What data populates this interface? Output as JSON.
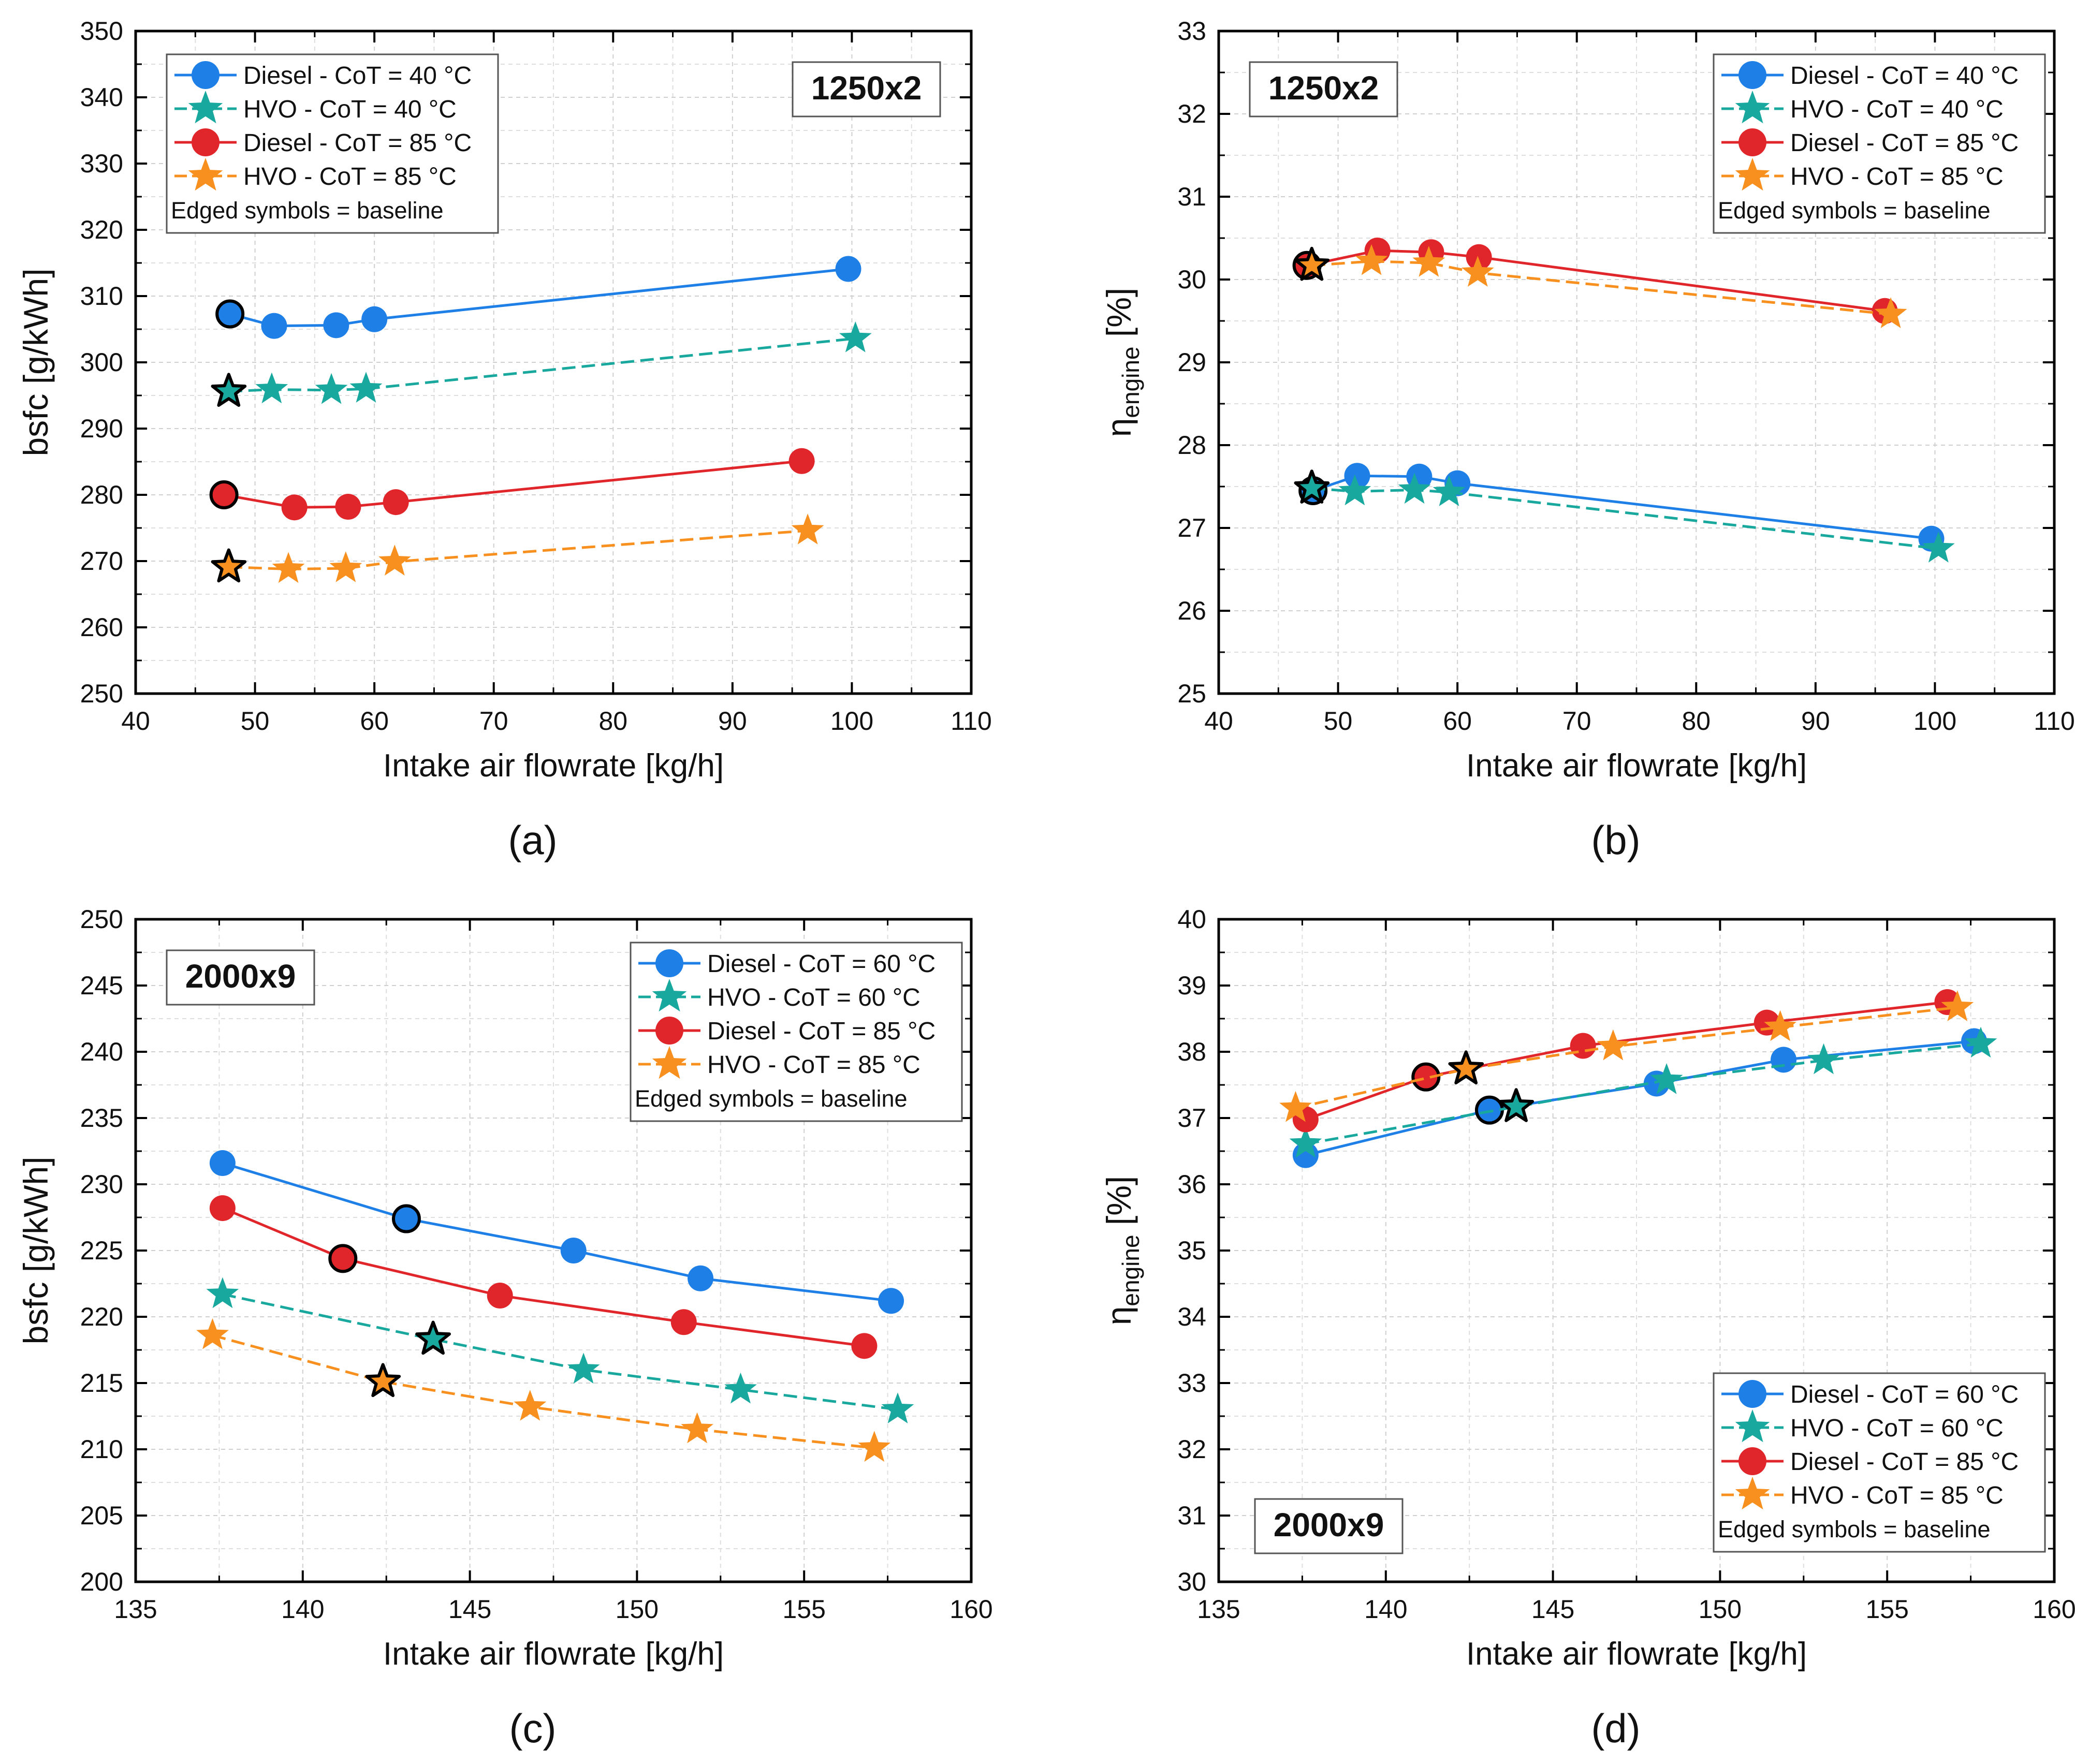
{
  "figure": {
    "panels": [
      "a",
      "b",
      "c",
      "d"
    ]
  },
  "colors": {
    "diesel_low": "#1E7FE6",
    "hvo_low": "#18A89E",
    "diesel_85": "#E0262B",
    "hvo_85": "#F7901E",
    "axis": "#000000",
    "grid": "#d0d0d0"
  },
  "chart_data": [
    {
      "id": "a",
      "type": "line",
      "panel_label": "(a)",
      "badge": "1250x2",
      "badge_position": "top-right",
      "legend_position": "top-left",
      "xlabel": "Intake air flowrate [kg/h]",
      "ylabel": "bsfc [g/kWh]",
      "ylabel_sub": "",
      "ylabel_suffix": "",
      "xlim": [
        40,
        110
      ],
      "ylim": [
        250,
        350
      ],
      "xticks": [
        40,
        50,
        60,
        70,
        80,
        90,
        100,
        110
      ],
      "yticks": [
        250,
        260,
        270,
        280,
        290,
        300,
        310,
        320,
        330,
        340,
        350
      ],
      "legend_note": "Edged symbols = baseline",
      "series": [
        {
          "name": "Diesel - CoT = 40 °C",
          "marker": "circle",
          "color": "#1E7FE6",
          "dashed": false,
          "baseline_index": 0,
          "x": [
            47.9,
            51.6,
            56.8,
            60.0,
            99.7
          ],
          "y": [
            307.3,
            305.5,
            305.6,
            306.5,
            314.1
          ]
        },
        {
          "name": "HVO - CoT = 40 °C",
          "marker": "star",
          "color": "#18A89E",
          "dashed": true,
          "baseline_index": 0,
          "x": [
            47.8,
            51.4,
            56.4,
            59.3,
            100.3
          ],
          "y": [
            295.6,
            295.9,
            295.8,
            296.0,
            303.6
          ]
        },
        {
          "name": "Diesel - CoT = 85 °C",
          "marker": "circle",
          "color": "#E0262B",
          "dashed": false,
          "baseline_index": 0,
          "x": [
            47.4,
            53.3,
            57.8,
            61.8,
            95.8
          ],
          "y": [
            280.0,
            278.1,
            278.2,
            278.9,
            285.1
          ]
        },
        {
          "name": "HVO - CoT = 85 °C",
          "marker": "star",
          "color": "#F7901E",
          "dashed": true,
          "baseline_index": 0,
          "x": [
            47.8,
            52.8,
            57.6,
            61.7,
            96.3
          ],
          "y": [
            269.1,
            268.8,
            268.9,
            269.9,
            274.6
          ]
        }
      ]
    },
    {
      "id": "b",
      "type": "line",
      "panel_label": "(b)",
      "badge": "1250x2",
      "badge_position": "top-left",
      "legend_position": "top-right",
      "xlabel": "Intake air flowrate [kg/h]",
      "ylabel": "η",
      "ylabel_sub": "engine",
      "ylabel_suffix": " [%]",
      "xlim": [
        40,
        110
      ],
      "ylim": [
        25,
        33
      ],
      "xticks": [
        40,
        50,
        60,
        70,
        80,
        90,
        100,
        110
      ],
      "yticks": [
        25,
        26,
        27,
        28,
        29,
        30,
        31,
        32,
        33
      ],
      "legend_note": "Edged symbols = baseline",
      "series": [
        {
          "name": "Diesel - CoT = 40 °C",
          "marker": "circle",
          "color": "#1E7FE6",
          "dashed": false,
          "baseline_index": 0,
          "x": [
            47.9,
            51.6,
            56.8,
            60.0,
            99.7
          ],
          "y": [
            27.45,
            27.63,
            27.62,
            27.54,
            26.87
          ]
        },
        {
          "name": "HVO - CoT = 40 °C",
          "marker": "star",
          "color": "#18A89E",
          "dashed": true,
          "baseline_index": 0,
          "x": [
            47.8,
            51.4,
            56.4,
            59.3,
            100.3
          ],
          "y": [
            27.48,
            27.44,
            27.46,
            27.43,
            26.75
          ]
        },
        {
          "name": "Diesel - CoT = 85 °C",
          "marker": "circle",
          "color": "#E0262B",
          "dashed": false,
          "baseline_index": 0,
          "x": [
            47.4,
            53.3,
            57.8,
            61.8,
            95.8
          ],
          "y": [
            30.17,
            30.35,
            30.33,
            30.27,
            29.62
          ]
        },
        {
          "name": "HVO - CoT = 85 °C",
          "marker": "star",
          "color": "#F7901E",
          "dashed": true,
          "baseline_index": 0,
          "x": [
            47.8,
            52.8,
            57.6,
            61.7,
            96.3
          ],
          "y": [
            30.17,
            30.22,
            30.2,
            30.08,
            29.58
          ]
        }
      ]
    },
    {
      "id": "c",
      "type": "line",
      "panel_label": "(c)",
      "badge": "2000x9",
      "badge_position": "top-left",
      "legend_position": "top-right",
      "xlabel": "Intake air flowrate [kg/h]",
      "ylabel": "bsfc [g/kWh]",
      "ylabel_sub": "",
      "ylabel_suffix": "",
      "xlim": [
        135,
        160
      ],
      "ylim": [
        200,
        250
      ],
      "xticks": [
        135,
        140,
        145,
        150,
        155,
        160
      ],
      "yticks": [
        200,
        205,
        210,
        215,
        220,
        225,
        230,
        235,
        240,
        245,
        250
      ],
      "legend_note": "Edged symbols = baseline",
      "series": [
        {
          "name": "Diesel - CoT = 60 °C",
          "marker": "circle",
          "color": "#1E7FE6",
          "dashed": false,
          "baseline_index": 1,
          "x": [
            137.6,
            143.1,
            148.1,
            151.9,
            157.6
          ],
          "y": [
            231.6,
            227.4,
            225.0,
            222.9,
            221.2
          ]
        },
        {
          "name": "HVO - CoT = 60 °C",
          "marker": "star",
          "color": "#18A89E",
          "dashed": true,
          "baseline_index": 1,
          "x": [
            137.6,
            143.9,
            148.4,
            153.1,
            157.8
          ],
          "y": [
            221.7,
            218.3,
            216.0,
            214.5,
            213.0
          ]
        },
        {
          "name": "Diesel - CoT = 85 °C",
          "marker": "circle",
          "color": "#E0262B",
          "dashed": false,
          "baseline_index": 1,
          "x": [
            137.6,
            141.2,
            145.9,
            151.4,
            156.8
          ],
          "y": [
            228.2,
            224.4,
            221.6,
            219.6,
            217.8
          ]
        },
        {
          "name": "HVO - CoT = 85 °C",
          "marker": "star",
          "color": "#F7901E",
          "dashed": true,
          "baseline_index": 1,
          "x": [
            137.3,
            142.4,
            146.8,
            151.8,
            157.1
          ],
          "y": [
            218.6,
            215.1,
            213.2,
            211.5,
            210.1
          ]
        }
      ]
    },
    {
      "id": "d",
      "type": "line",
      "panel_label": "(d)",
      "badge": "2000x9",
      "badge_position": "bottom-left",
      "legend_position": "bottom-right",
      "xlabel": "Intake air flowrate [kg/h]",
      "ylabel": "η",
      "ylabel_sub": "engine",
      "ylabel_suffix": " [%]",
      "xlim": [
        135,
        160
      ],
      "ylim": [
        30,
        40
      ],
      "xticks": [
        135,
        140,
        145,
        150,
        155,
        160
      ],
      "yticks": [
        30,
        31,
        32,
        33,
        34,
        35,
        36,
        37,
        38,
        39,
        40
      ],
      "legend_note": "Edged symbols = baseline",
      "series": [
        {
          "name": "Diesel - CoT = 60 °C",
          "marker": "circle",
          "color": "#1E7FE6",
          "dashed": false,
          "baseline_index": 1,
          "x": [
            137.6,
            143.1,
            148.1,
            151.9,
            157.6
          ],
          "y": [
            36.44,
            37.12,
            37.52,
            37.88,
            38.16
          ]
        },
        {
          "name": "HVO - CoT = 60 °C",
          "marker": "star",
          "color": "#18A89E",
          "dashed": true,
          "baseline_index": 1,
          "x": [
            137.6,
            143.9,
            148.4,
            153.1,
            157.8
          ],
          "y": [
            36.61,
            37.17,
            37.57,
            37.87,
            38.12
          ]
        },
        {
          "name": "Diesel - CoT = 85 °C",
          "marker": "circle",
          "color": "#E0262B",
          "dashed": false,
          "baseline_index": 1,
          "x": [
            137.6,
            141.2,
            145.9,
            151.4,
            156.8
          ],
          "y": [
            36.98,
            37.62,
            38.09,
            38.44,
            38.75
          ]
        },
        {
          "name": "HVO - CoT = 85 °C",
          "marker": "star",
          "color": "#F7901E",
          "dashed": true,
          "baseline_index": 1,
          "x": [
            137.3,
            142.4,
            146.8,
            151.8,
            157.1
          ],
          "y": [
            37.15,
            37.74,
            38.08,
            38.37,
            38.67
          ]
        }
      ]
    }
  ]
}
